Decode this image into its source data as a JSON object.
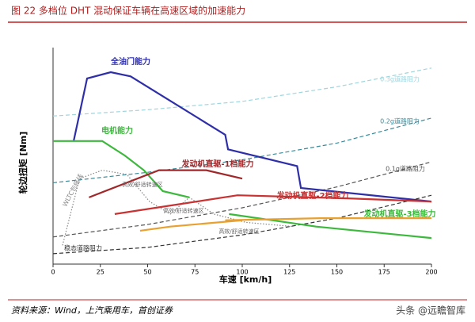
{
  "chart_data": {
    "type": "line",
    "title": "图 22 多档位 DHT 混动保证车辆在高速区域的加速能力",
    "x_label": "车速 [km/h]",
    "y_label": "轮边扭矩 [Nm]",
    "source": "资料来源：Wind，上汽乘用车，首创证券",
    "watermark": "头条 @远瞻智库",
    "xlim": [
      0,
      200
    ],
    "xticks": [
      0,
      25,
      50,
      75,
      100,
      125,
      150,
      175,
      200
    ],
    "ylim": [
      0,
      100
    ],
    "series": [
      {
        "name": "0.3g道路阻力",
        "color": "#9fd6de",
        "dash": "dashed",
        "x": [
          0,
          50,
          100,
          150,
          200
        ],
        "values": [
          71,
          74,
          78,
          85,
          94
        ]
      },
      {
        "name": "0.2g道路阻力",
        "color": "#3a8a9a",
        "dash": "dashed",
        "x": [
          0,
          50,
          100,
          150,
          200
        ],
        "values": [
          39,
          44,
          50,
          58,
          70
        ]
      },
      {
        "name": "0.1g道路阻力",
        "color": "#555555",
        "dash": "dashed",
        "x": [
          0,
          50,
          100,
          150,
          200
        ],
        "values": [
          13,
          19,
          27,
          37,
          49
        ]
      },
      {
        "name": "稳态道路阻力",
        "color": "#333333",
        "dash": "dashed",
        "x": [
          0,
          50,
          100,
          150,
          200
        ],
        "values": [
          5,
          8,
          14,
          22,
          33
        ]
      },
      {
        "name": "WLTC包络线",
        "color": "#888888",
        "dash": "dotted",
        "x": [
          5,
          14,
          26,
          39,
          51,
          62,
          72,
          85,
          102,
          127
        ],
        "values": [
          9,
          41,
          45,
          43,
          30,
          24,
          32,
          24,
          20,
          18
        ]
      },
      {
        "name": "全油门能力",
        "color": "#2e2ea8",
        "dash": "solid",
        "x": [
          10.9,
          18,
          30.5,
          41,
          91,
          92.5,
          129,
          131,
          200
        ],
        "values": [
          59,
          89,
          92,
          90,
          62,
          55,
          47,
          36.5,
          30
        ]
      },
      {
        "name": "电机能力",
        "color": "#3cb83c",
        "dash": "solid",
        "x": [
          0,
          26,
          38,
          48,
          58,
          72
        ],
        "values": [
          59,
          59,
          52,
          45,
          35,
          32
        ]
      },
      {
        "name": "发动机直驱-1档能力",
        "color": "#a0282a",
        "dash": "solid",
        "x": [
          19,
          56,
          81,
          100
        ],
        "values": [
          32,
          45,
          45,
          41
        ]
      },
      {
        "name": "发动机直驱-2档能力",
        "color": "#c83232",
        "dash": "solid",
        "x": [
          32.6,
          97.5,
          156,
          200
        ],
        "values": [
          24,
          33,
          31.5,
          30
        ]
      },
      {
        "name": "发动机直驱-3档能力",
        "color": "#3cb83c",
        "dash": "solid",
        "x": [
          93,
          139,
          200
        ],
        "values": [
          24,
          18,
          12.5
        ]
      },
      {
        "color": "#e8a030",
        "dash": "solid",
        "x": [
          46,
          62,
          100
        ],
        "values": [
          16,
          18,
          21
        ]
      },
      {
        "color": "#e8a030",
        "dash": "solid",
        "x": [
          91,
          141,
          200
        ],
        "values": [
          21,
          22,
          22
        ]
      }
    ],
    "annotations": [
      "高效/舒适转速区",
      "高效/舒适转速区",
      "高效/舒适转速区"
    ]
  }
}
